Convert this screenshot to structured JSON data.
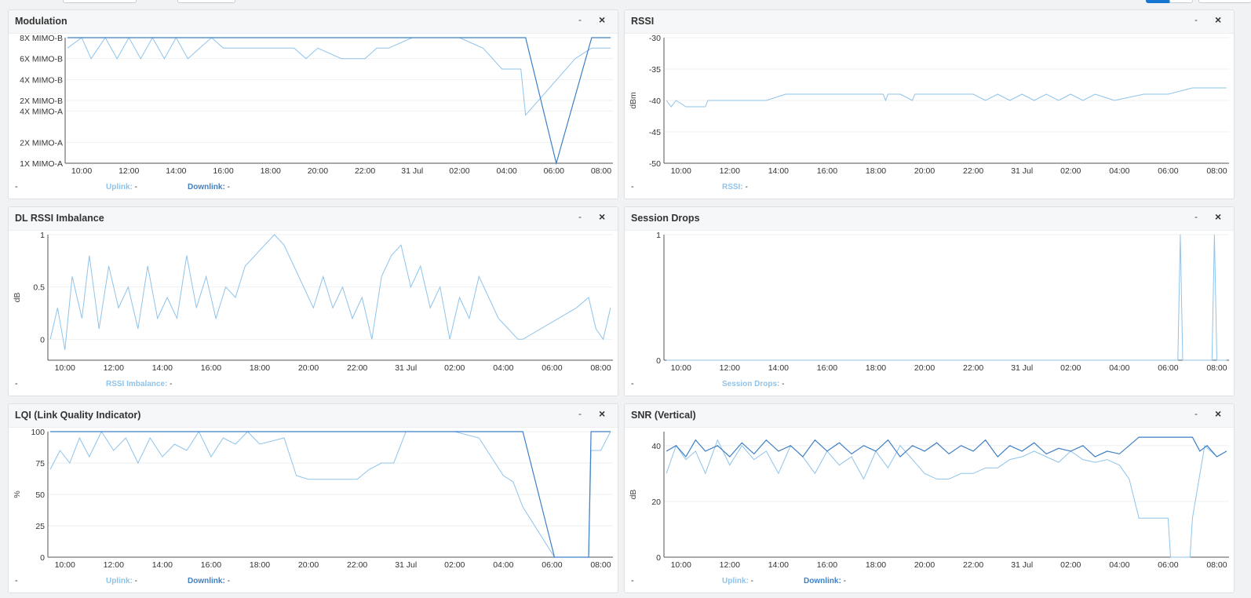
{
  "colors": {
    "uplink": "#8ec3ea",
    "downlink": "#3f7fc4",
    "grid": "#eef0f2"
  },
  "time_axis": [
    "10:00",
    "12:00",
    "14:00",
    "16:00",
    "18:00",
    "20:00",
    "22:00",
    "31 Jul",
    "02:00",
    "04:00",
    "06:00",
    "08:00"
  ],
  "panels": {
    "modulation": {
      "title": "Modulation",
      "min_label": "-",
      "close_label": "×",
      "footer_dash": "-",
      "legend": [
        {
          "label": "Uplink:",
          "value": "-"
        },
        {
          "label": "Downlink:",
          "value": "-"
        }
      ]
    },
    "rssi": {
      "title": "RSSI",
      "min_label": "-",
      "close_label": "×",
      "footer_dash": "-",
      "legend": [
        {
          "label": "RSSI:",
          "value": "-"
        }
      ]
    },
    "imbalance": {
      "title": "DL RSSI Imbalance",
      "min_label": "-",
      "close_label": "×",
      "footer_dash": "-",
      "legend": [
        {
          "label": "RSSI Imbalance:",
          "value": "-"
        }
      ]
    },
    "drops": {
      "title": "Session Drops",
      "min_label": "-",
      "close_label": "×",
      "footer_dash": "-",
      "legend": [
        {
          "label": "Session Drops:",
          "value": "-"
        }
      ]
    },
    "lqi": {
      "title": "LQI (Link Quality Indicator)",
      "min_label": "-",
      "close_label": "×",
      "footer_dash": "-",
      "legend": [
        {
          "label": "Uplink:",
          "value": "-"
        },
        {
          "label": "Downlink:",
          "value": "-"
        }
      ]
    },
    "snr": {
      "title": "SNR (Vertical)",
      "min_label": "-",
      "close_label": "×",
      "footer_dash": "-",
      "legend": [
        {
          "label": "Uplink:",
          "value": "-"
        },
        {
          "label": "Downlink:",
          "value": "-"
        }
      ]
    }
  },
  "chart_data": [
    {
      "type": "line",
      "title": "Modulation",
      "ylabel": "",
      "y_categories": [
        "1X MIMO-A",
        "2X MIMO-A",
        "4X MIMO-A",
        "2X MIMO-B",
        "4X MIMO-B",
        "6X MIMO-B",
        "8X MIMO-B"
      ],
      "y_levels": [
        0,
        1,
        2.5,
        3,
        4,
        5,
        6
      ],
      "series": [
        {
          "name": "Uplink",
          "x": [
            9.4,
            10,
            10.4,
            11,
            11.5,
            12,
            12.5,
            13,
            13.5,
            14,
            14.5,
            15,
            15.5,
            16,
            17,
            18,
            19,
            19.5,
            20,
            21,
            22,
            22.5,
            23,
            24,
            25,
            26,
            27,
            27.8,
            28,
            28.6,
            28.8,
            30.9,
            31.6,
            32.4
          ],
          "y": [
            5.5,
            6,
            5,
            6,
            5,
            6,
            5,
            6,
            5,
            6,
            5,
            5.5,
            6,
            5.5,
            5.5,
            5.5,
            5.5,
            5,
            5.5,
            5,
            5,
            5.5,
            5.5,
            6,
            6,
            6,
            5.5,
            4.5,
            4.5,
            4.5,
            2.3,
            5,
            5.5,
            5.5
          ]
        },
        {
          "name": "Downlink",
          "x": [
            9.4,
            28.8,
            30.1,
            31.6,
            32.4
          ],
          "y": [
            6,
            6,
            0,
            6,
            6
          ]
        }
      ]
    },
    {
      "type": "line",
      "title": "RSSI",
      "ylabel": "dBm",
      "ylim": [
        -50,
        -30
      ],
      "yticks": [
        -30,
        -35,
        -40,
        -45,
        -50
      ],
      "series": [
        {
          "name": "RSSI",
          "x": [
            9.4,
            9.6,
            9.8,
            10.2,
            11,
            11.1,
            12,
            13,
            13.5,
            14.3,
            14.5,
            16,
            17,
            18.3,
            18.4,
            18.5,
            19,
            19.5,
            19.6,
            20,
            21,
            22,
            22.5,
            23,
            23.5,
            24,
            24.5,
            25,
            25.5,
            26,
            26.5,
            27,
            27.8,
            29,
            30,
            31,
            32.4
          ],
          "y": [
            -40,
            -41,
            -40,
            -41,
            -41,
            -40,
            -40,
            -40,
            -40,
            -39,
            -39,
            -39,
            -39,
            -39,
            -40,
            -39,
            -39,
            -40,
            -39,
            -39,
            -39,
            -39,
            -40,
            -39,
            -40,
            -39,
            -40,
            -39,
            -40,
            -39,
            -40,
            -39,
            -40,
            -39,
            -39,
            -38,
            -38
          ]
        }
      ]
    },
    {
      "type": "line",
      "title": "DL RSSI Imbalance",
      "ylabel": "dB",
      "ylim": [
        -0.2,
        1
      ],
      "yticks": [
        0,
        0.5,
        1
      ],
      "series": [
        {
          "name": "RSSI Imbalance",
          "x": [
            9.4,
            9.7,
            10,
            10.3,
            10.7,
            11,
            11.4,
            11.8,
            12.2,
            12.6,
            13,
            13.4,
            13.8,
            14.2,
            14.6,
            15,
            15.4,
            15.8,
            16.2,
            16.6,
            17,
            17.4,
            17.8,
            18.2,
            18.6,
            19,
            19.4,
            19.8,
            20.2,
            20.6,
            21,
            21.4,
            21.8,
            22.2,
            22.6,
            23,
            23.4,
            23.8,
            24.2,
            24.6,
            25,
            25.4,
            25.8,
            26.2,
            26.6,
            27,
            27.4,
            27.8,
            28.2,
            28.6,
            28.8,
            31,
            31.5,
            31.8,
            32.1,
            32.4
          ],
          "y": [
            0,
            0.3,
            -0.1,
            0.6,
            0.2,
            0.8,
            0.1,
            0.7,
            0.3,
            0.5,
            0.1,
            0.7,
            0.2,
            0.4,
            0.2,
            0.8,
            0.3,
            0.6,
            0.2,
            0.5,
            0.4,
            0.7,
            0.8,
            0.9,
            1,
            0.9,
            0.7,
            0.5,
            0.3,
            0.6,
            0.3,
            0.5,
            0.2,
            0.4,
            0,
            0.6,
            0.8,
            0.9,
            0.5,
            0.7,
            0.3,
            0.5,
            0,
            0.4,
            0.2,
            0.6,
            0.4,
            0.2,
            0.1,
            0,
            0,
            0.3,
            0.4,
            0.1,
            0,
            0.3
          ]
        }
      ]
    },
    {
      "type": "line",
      "title": "Session Drops",
      "ylim": [
        0,
        1
      ],
      "yticks": [
        0,
        1
      ],
      "series": [
        {
          "name": "Session Drops",
          "x": [
            9.4,
            30.4,
            30.5,
            30.6,
            31.8,
            31.9,
            32.0,
            32.4
          ],
          "y": [
            0,
            0,
            1,
            0,
            0,
            1,
            0,
            0
          ]
        }
      ]
    },
    {
      "type": "line",
      "title": "LQI (Link Quality Indicator)",
      "ylabel": "%",
      "ylim": [
        0,
        100
      ],
      "yticks": [
        0,
        25,
        50,
        75,
        100
      ],
      "series": [
        {
          "name": "Uplink",
          "x": [
            9.4,
            9.8,
            10.2,
            10.6,
            11,
            11.5,
            12,
            12.5,
            13,
            13.5,
            14,
            14.5,
            15,
            15.5,
            16,
            16.5,
            17,
            17.5,
            18,
            19,
            19.5,
            20,
            21,
            22,
            22.5,
            23,
            23.5,
            24,
            25,
            26,
            27,
            27.5,
            28,
            28.4,
            28.8,
            30.1,
            31.5,
            31.6,
            32,
            32.4
          ],
          "y": [
            70,
            85,
            75,
            95,
            80,
            100,
            85,
            95,
            75,
            95,
            80,
            90,
            85,
            100,
            80,
            95,
            90,
            100,
            90,
            95,
            65,
            62,
            62,
            62,
            70,
            75,
            75,
            100,
            100,
            100,
            95,
            80,
            65,
            60,
            40,
            0,
            0,
            85,
            85,
            100
          ]
        },
        {
          "name": "Downlink",
          "x": [
            9.4,
            28.8,
            30.1,
            31.5,
            31.6,
            32.4
          ],
          "y": [
            100,
            100,
            0,
            0,
            100,
            100
          ]
        }
      ]
    },
    {
      "type": "line",
      "title": "SNR (Vertical)",
      "ylabel": "dB",
      "ylim": [
        0,
        45
      ],
      "yticks": [
        0,
        20,
        40
      ],
      "series": [
        {
          "name": "Uplink",
          "x": [
            9.4,
            9.8,
            10.2,
            10.6,
            11,
            11.5,
            12,
            12.5,
            13,
            13.5,
            14,
            14.5,
            15,
            15.5,
            16,
            16.5,
            17,
            17.5,
            18,
            18.5,
            19,
            19.5,
            20,
            20.5,
            21,
            21.5,
            22,
            22.5,
            23,
            23.5,
            24,
            24.5,
            25,
            25.5,
            26,
            26.5,
            27,
            27.5,
            28,
            28.4,
            28.8,
            29,
            29.5,
            30,
            30.1,
            30.9,
            31,
            31.5,
            32,
            32.4
          ],
          "y": [
            30,
            40,
            35,
            38,
            30,
            42,
            33,
            40,
            35,
            38,
            30,
            40,
            36,
            30,
            38,
            33,
            36,
            28,
            38,
            32,
            40,
            35,
            30,
            28,
            28,
            30,
            30,
            32,
            32,
            35,
            36,
            38,
            36,
            34,
            38,
            35,
            34,
            35,
            33,
            28,
            14,
            14,
            14,
            14,
            0,
            0,
            14,
            40,
            36,
            38
          ]
        },
        {
          "name": "Downlink",
          "x": [
            9.4,
            9.8,
            10.2,
            10.6,
            11,
            11.5,
            12,
            12.5,
            13,
            13.5,
            14,
            14.5,
            15,
            15.5,
            16,
            16.5,
            17,
            17.5,
            18,
            18.5,
            19,
            19.5,
            20,
            20.5,
            21,
            21.5,
            22,
            22.5,
            23,
            23.5,
            24,
            24.5,
            25,
            25.5,
            26,
            26.5,
            27,
            27.5,
            28,
            28.8,
            31,
            31.3,
            31.6,
            32,
            32.4
          ],
          "y": [
            38,
            40,
            36,
            42,
            38,
            40,
            36,
            41,
            37,
            42,
            38,
            40,
            36,
            42,
            38,
            41,
            37,
            40,
            38,
            42,
            36,
            40,
            38,
            41,
            37,
            40,
            38,
            42,
            36,
            40,
            38,
            41,
            37,
            39,
            38,
            40,
            36,
            38,
            37,
            43,
            43,
            38,
            40,
            36,
            38
          ]
        }
      ]
    }
  ]
}
